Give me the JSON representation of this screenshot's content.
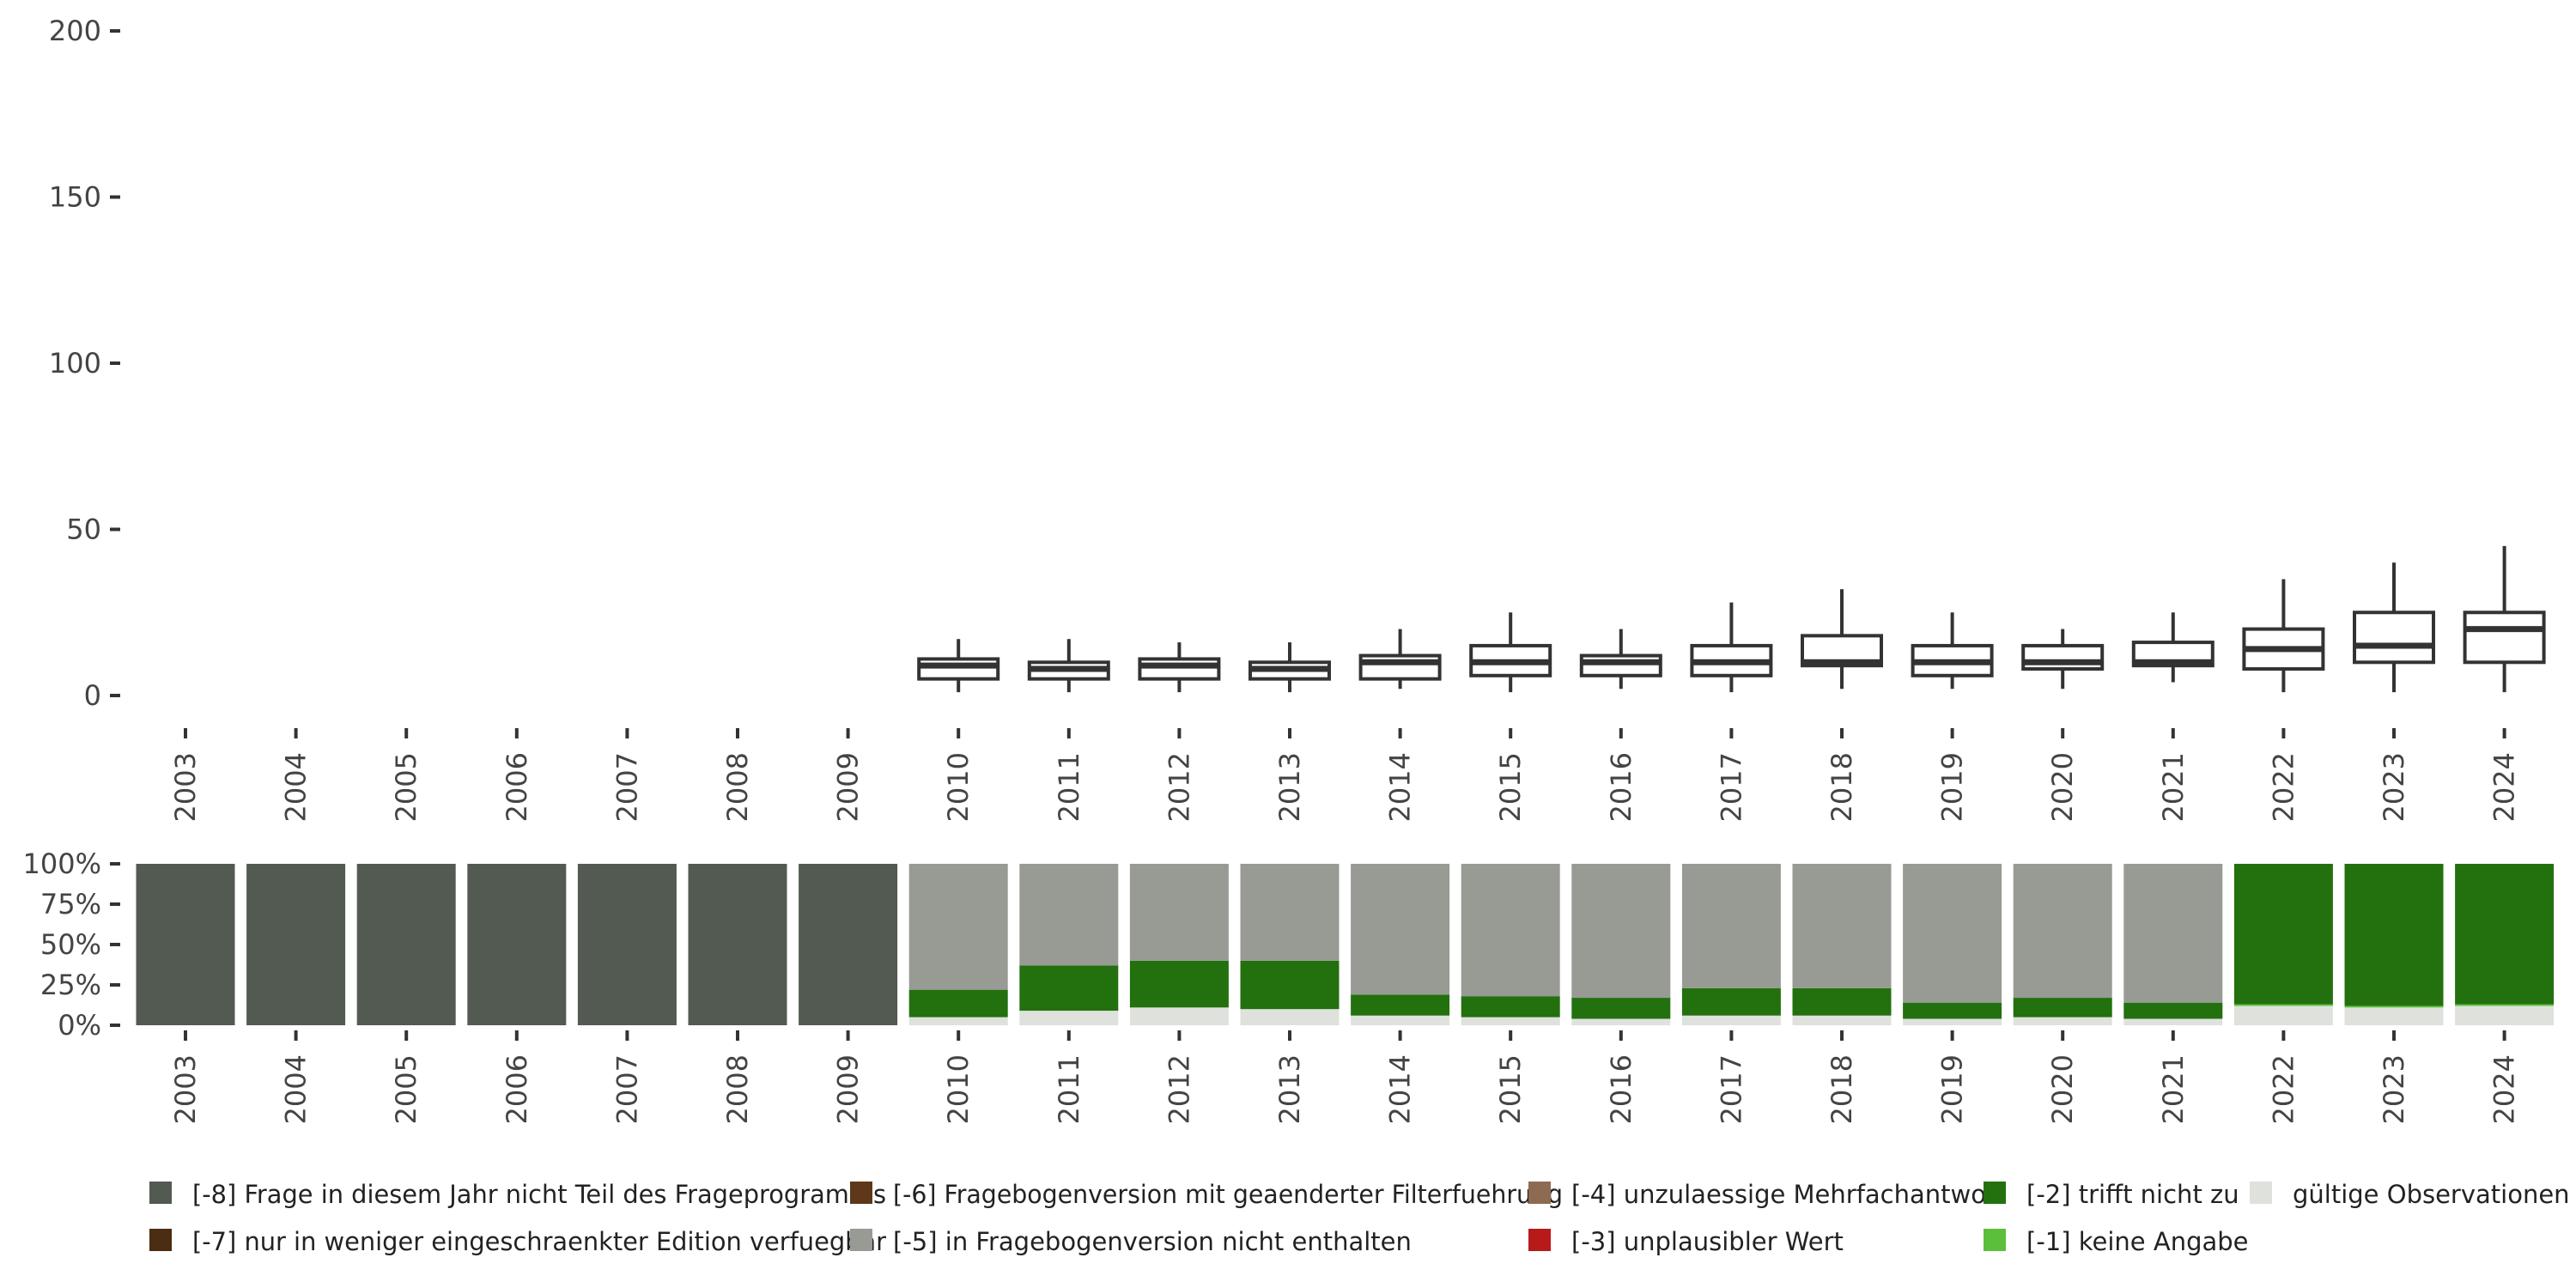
{
  "chart_data": [
    {
      "type": "boxplot",
      "title": "",
      "xlabel": "",
      "ylabel": "",
      "ylim": [
        0,
        200
      ],
      "yticks": [
        0,
        50,
        100,
        150,
        200
      ],
      "years": [
        "2003",
        "2004",
        "2005",
        "2006",
        "2007",
        "2008",
        "2009",
        "2010",
        "2011",
        "2012",
        "2013",
        "2014",
        "2015",
        "2016",
        "2017",
        "2018",
        "2019",
        "2020",
        "2021",
        "2022",
        "2023",
        "2024"
      ],
      "boxes": [
        {
          "year": "2010",
          "min": 1,
          "q1": 5,
          "median": 9,
          "q3": 11,
          "max": 17
        },
        {
          "year": "2011",
          "min": 1,
          "q1": 5,
          "median": 8,
          "q3": 10,
          "max": 17
        },
        {
          "year": "2012",
          "min": 1,
          "q1": 5,
          "median": 9,
          "q3": 11,
          "max": 16
        },
        {
          "year": "2013",
          "min": 1,
          "q1": 5,
          "median": 8,
          "q3": 10,
          "max": 16
        },
        {
          "year": "2014",
          "min": 2,
          "q1": 5,
          "median": 10,
          "q3": 12,
          "max": 20
        },
        {
          "year": "2015",
          "min": 1,
          "q1": 6,
          "median": 10,
          "q3": 15,
          "max": 25
        },
        {
          "year": "2016",
          "min": 2,
          "q1": 6,
          "median": 10,
          "q3": 12,
          "max": 20
        },
        {
          "year": "2017",
          "min": 1,
          "q1": 6,
          "median": 10,
          "q3": 15,
          "max": 28
        },
        {
          "year": "2018",
          "min": 2,
          "q1": 9,
          "median": 10,
          "q3": 18,
          "max": 32
        },
        {
          "year": "2019",
          "min": 2,
          "q1": 6,
          "median": 10,
          "q3": 15,
          "max": 25
        },
        {
          "year": "2020",
          "min": 2,
          "q1": 8,
          "median": 10,
          "q3": 15,
          "max": 20
        },
        {
          "year": "2021",
          "min": 4,
          "q1": 9,
          "median": 10,
          "q3": 16,
          "max": 25
        },
        {
          "year": "2022",
          "min": 1,
          "q1": 8,
          "median": 14,
          "q3": 20,
          "max": 35
        },
        {
          "year": "2023",
          "min": 1,
          "q1": 10,
          "median": 15,
          "q3": 25,
          "max": 40
        },
        {
          "year": "2024",
          "min": 1,
          "q1": 10,
          "median": 20,
          "q3": 25,
          "max": 45
        }
      ]
    },
    {
      "type": "stacked_bar",
      "ylim": [
        0,
        100
      ],
      "yticks": [
        "0%",
        "25%",
        "50%",
        "75%",
        "100%"
      ],
      "categories": [
        "2003",
        "2004",
        "2005",
        "2006",
        "2007",
        "2008",
        "2009",
        "2010",
        "2011",
        "2012",
        "2013",
        "2014",
        "2015",
        "2016",
        "2017",
        "2018",
        "2019",
        "2020",
        "2021",
        "2022",
        "2023",
        "2024"
      ],
      "series": [
        {
          "name": "gültige Observationen",
          "color": "#dfe1dd",
          "values": [
            0,
            0,
            0,
            0,
            0,
            0,
            0,
            5,
            9,
            11,
            10,
            6,
            5,
            4,
            6,
            6,
            4,
            5,
            4,
            12,
            11,
            12
          ]
        },
        {
          "name": "[-1] keine Angabe",
          "color": "#5bbf3b",
          "values": [
            0,
            0,
            0,
            0,
            0,
            0,
            0,
            0,
            0,
            0,
            0,
            0,
            0,
            0,
            0,
            0,
            0,
            0,
            0,
            1,
            1,
            1
          ]
        },
        {
          "name": "[-2] trifft nicht zu",
          "color": "#23700f",
          "values": [
            0,
            0,
            0,
            0,
            0,
            0,
            0,
            17,
            28,
            29,
            30,
            13,
            13,
            13,
            17,
            17,
            10,
            12,
            10,
            87,
            88,
            87
          ]
        },
        {
          "name": "[-5] in Fragebogenversion nicht enthalten",
          "color": "#979b94",
          "values": [
            0,
            0,
            0,
            0,
            0,
            0,
            0,
            78,
            63,
            60,
            60,
            81,
            82,
            83,
            77,
            77,
            86,
            83,
            86,
            0,
            0,
            0
          ]
        },
        {
          "name": "[-8] Frage in diesem Jahr nicht Teil des Frageprogramms",
          "color": "#525a52",
          "values": [
            100,
            100,
            100,
            100,
            100,
            100,
            100,
            0,
            0,
            0,
            0,
            0,
            0,
            0,
            0,
            0,
            0,
            0,
            0,
            0,
            0,
            0
          ]
        }
      ]
    }
  ],
  "legend": [
    {
      "label": "[-8] Frage in diesem Jahr nicht Teil des Frageprogramms",
      "color": "#525a52"
    },
    {
      "label": "[-7] nur in weniger eingeschraenkter Edition verfuegbar",
      "color": "#4a2d12"
    },
    {
      "label": "[-6] Fragebogenversion mit geaenderter Filterfuehrung",
      "color": "#5e3818"
    },
    {
      "label": "[-5] in Fragebogenversion nicht enthalten",
      "color": "#979b94"
    },
    {
      "label": "[-4] unzulaessige Mehrfachantwort",
      "color": "#8f6a52"
    },
    {
      "label": "[-3] unplausibler Wert",
      "color": "#b81a1a"
    },
    {
      "label": "[-2] trifft nicht zu",
      "color": "#23700f"
    },
    {
      "label": "[-1] keine Angabe",
      "color": "#5bbf3b"
    },
    {
      "label": "gültige Observationen",
      "color": "#dfe1dd"
    }
  ]
}
